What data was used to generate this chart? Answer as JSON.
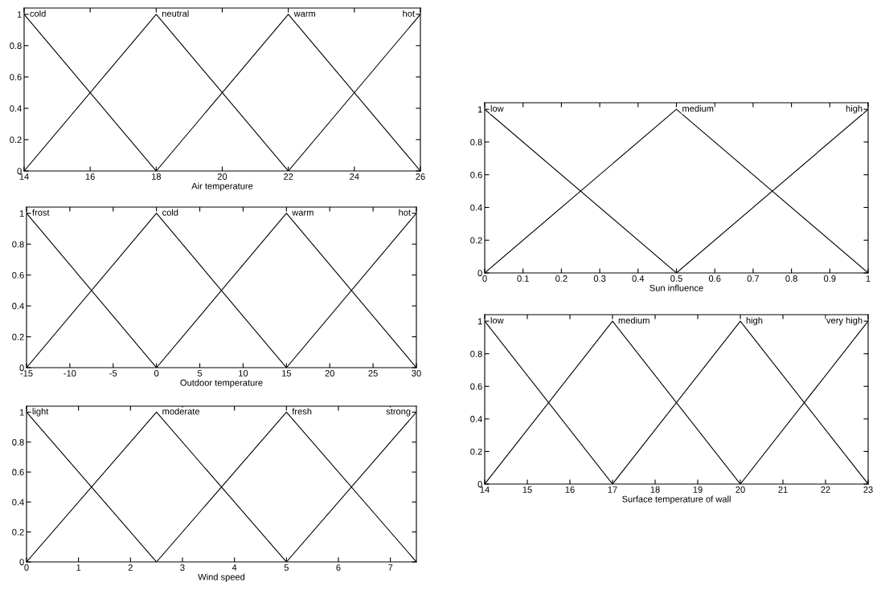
{
  "chart_data": [
    {
      "type": "line",
      "xlabel": "Air temperature",
      "xlim": [
        14,
        26
      ],
      "xticks": [
        14,
        16,
        18,
        20,
        22,
        24,
        26
      ],
      "ylim": [
        0,
        1.04
      ],
      "yticks": [
        0,
        0.2,
        0.4,
        0.6,
        0.8,
        1
      ],
      "legend": "top",
      "grid": false,
      "series": [
        {
          "name": "cold",
          "color": "#000000",
          "x": [
            14,
            18
          ],
          "values": [
            1,
            0
          ]
        },
        {
          "name": "neutral",
          "color": "#000000",
          "x": [
            14,
            18,
            22
          ],
          "values": [
            0,
            1,
            0
          ]
        },
        {
          "name": "warm",
          "color": "#000000",
          "x": [
            18,
            22,
            26
          ],
          "values": [
            0,
            1,
            0
          ]
        },
        {
          "name": "hot",
          "color": "#000000",
          "x": [
            22,
            26
          ],
          "values": [
            0,
            1
          ]
        }
      ]
    },
    {
      "type": "line",
      "xlabel": "Outdoor temperature",
      "xlim": [
        -15,
        30
      ],
      "xticks": [
        -15,
        -10,
        -5,
        0,
        5,
        10,
        15,
        20,
        25,
        30
      ],
      "ylim": [
        0,
        1.04
      ],
      "yticks": [
        0,
        0.2,
        0.4,
        0.6,
        0.8,
        1
      ],
      "legend": "top",
      "grid": false,
      "series": [
        {
          "name": "frost",
          "color": "#000000",
          "x": [
            -15,
            0
          ],
          "values": [
            1,
            0
          ]
        },
        {
          "name": "cold",
          "color": "#000000",
          "x": [
            -15,
            0,
            15
          ],
          "values": [
            0,
            1,
            0
          ]
        },
        {
          "name": "warm",
          "color": "#000000",
          "x": [
            0,
            15,
            30
          ],
          "values": [
            0,
            1,
            0
          ]
        },
        {
          "name": "hot",
          "color": "#000000",
          "x": [
            15,
            30
          ],
          "values": [
            0,
            1
          ]
        }
      ]
    },
    {
      "type": "line",
      "xlabel": "Wind speed",
      "xlim": [
        0,
        7.5
      ],
      "xticks": [
        0,
        1,
        2,
        3,
        4,
        5,
        6,
        7
      ],
      "ylim": [
        0,
        1.04
      ],
      "yticks": [
        0,
        0.2,
        0.4,
        0.6,
        0.8,
        1
      ],
      "legend": "top",
      "grid": false,
      "series": [
        {
          "name": "light",
          "color": "#000000",
          "x": [
            0,
            2.5
          ],
          "values": [
            1,
            0
          ]
        },
        {
          "name": "moderate",
          "color": "#000000",
          "x": [
            0,
            2.5,
            5
          ],
          "values": [
            0,
            1,
            0
          ]
        },
        {
          "name": "fresh",
          "color": "#000000",
          "x": [
            2.5,
            5,
            7.5
          ],
          "values": [
            0,
            1,
            0
          ]
        },
        {
          "name": "strong",
          "color": "#000000",
          "x": [
            5,
            7.5
          ],
          "values": [
            0,
            1
          ]
        }
      ]
    },
    {
      "type": "line",
      "xlabel": "Sun influence",
      "xlim": [
        0,
        1
      ],
      "xticks": [
        0,
        0.1,
        0.2,
        0.3,
        0.4,
        0.5,
        0.6,
        0.7,
        0.8,
        0.9,
        1
      ],
      "ylim": [
        0,
        1.04
      ],
      "yticks": [
        0,
        0.2,
        0.4,
        0.6,
        0.8,
        1
      ],
      "legend": "top",
      "grid": false,
      "series": [
        {
          "name": "low",
          "color": "#000000",
          "x": [
            0,
            0.5
          ],
          "values": [
            1,
            0
          ]
        },
        {
          "name": "medium",
          "color": "#000000",
          "x": [
            0,
            0.5,
            1
          ],
          "values": [
            0,
            1,
            0
          ]
        },
        {
          "name": "high",
          "color": "#000000",
          "x": [
            0.5,
            1
          ],
          "values": [
            0,
            1
          ]
        }
      ]
    },
    {
      "type": "line",
      "xlabel": "Surface temperature of wall",
      "xlim": [
        14,
        23
      ],
      "xticks": [
        14,
        15,
        16,
        17,
        18,
        19,
        20,
        21,
        22,
        23
      ],
      "ylim": [
        0,
        1.04
      ],
      "yticks": [
        0,
        0.2,
        0.4,
        0.6,
        0.8,
        1
      ],
      "legend": "top",
      "grid": false,
      "series": [
        {
          "name": "low",
          "color": "#000000",
          "x": [
            14,
            17
          ],
          "values": [
            1,
            0
          ]
        },
        {
          "name": "medium",
          "color": "#000000",
          "x": [
            14,
            17,
            20
          ],
          "values": [
            0,
            1,
            0
          ]
        },
        {
          "name": "high",
          "color": "#000000",
          "x": [
            17,
            20,
            23
          ],
          "values": [
            0,
            1,
            0
          ]
        },
        {
          "name": "very high",
          "color": "#000000",
          "x": [
            20,
            23
          ],
          "values": [
            0,
            1
          ]
        }
      ]
    }
  ]
}
